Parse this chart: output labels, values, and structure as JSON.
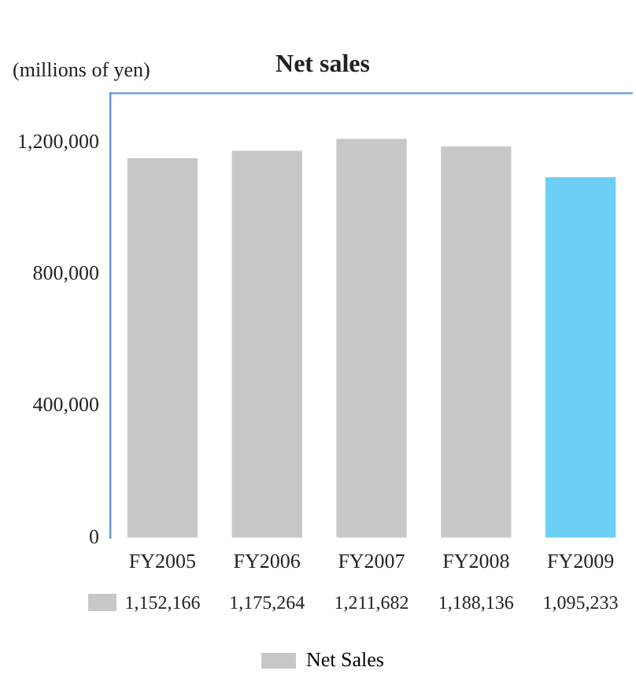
{
  "chart_data": {
    "type": "bar",
    "title": "Net sales",
    "ylabel": "(millions of yen)",
    "categories": [
      "FY2005",
      "FY2006",
      "FY2007",
      "FY2008",
      "FY2009"
    ],
    "series": [
      {
        "name": "Net Sales",
        "color": "#c8c8c8",
        "colors": [
          "#c8c8c8",
          "#c8c8c8",
          "#c8c8c8",
          "#c8c8c8",
          "#6dcff6"
        ],
        "values": [
          1152166,
          1175264,
          1211682,
          1188136,
          1095233
        ],
        "value_labels": [
          "1,152,166",
          "1,175,264",
          "1,211,682",
          "1,188,136",
          "1,095,233"
        ]
      }
    ],
    "ylim": [
      0,
      1350000
    ],
    "yticks": [
      0,
      {
        "value": 400000,
        "label": "400,000"
      },
      {
        "value": 800000,
        "label": "800,000"
      },
      {
        "value": 1200000,
        "label": "1,200,000"
      }
    ],
    "grid": false,
    "legend": "bottom"
  }
}
